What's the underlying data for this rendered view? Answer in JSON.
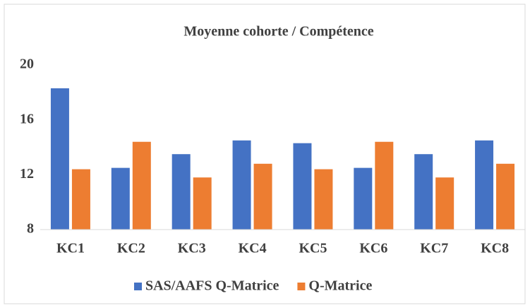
{
  "chart_data": {
    "type": "bar",
    "title": "Moyenne cohorte  / Compétence",
    "categories": [
      "KC1",
      "KC2",
      "KC3",
      "KC4",
      "KC5",
      "KC6",
      "KC7",
      "KC8"
    ],
    "series": [
      {
        "name": "SAS/AAFS Q-Matrice",
        "color": "#4472c4",
        "values": [
          18.3,
          12.5,
          13.5,
          14.5,
          14.3,
          12.5,
          13.5,
          14.5
        ]
      },
      {
        "name": "Q-Matrice",
        "color": "#ed7d31",
        "values": [
          12.4,
          14.4,
          11.8,
          12.8,
          12.4,
          14.4,
          11.8,
          12.8
        ]
      }
    ],
    "ylim": [
      8,
      20
    ],
    "yticks": [
      8,
      12,
      16,
      20
    ],
    "grid": false,
    "legend": "bottom"
  }
}
